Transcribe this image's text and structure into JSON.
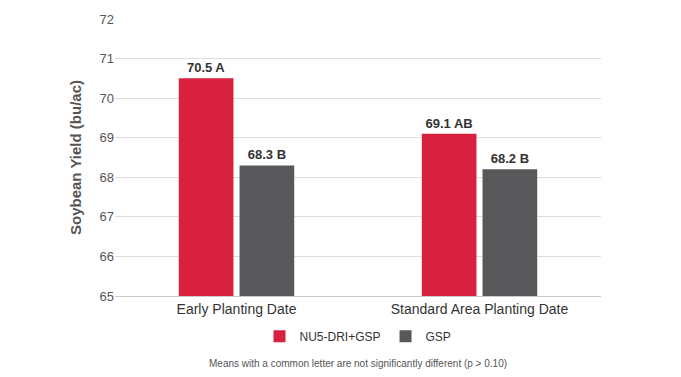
{
  "chart_data": {
    "type": "bar",
    "categories": [
      "Early Planting Date",
      "Standard Area Planting Date"
    ],
    "series": [
      {
        "name": "NU5-DRI+GSP",
        "color": "#d8213e",
        "values": [
          70.5,
          69.1
        ],
        "value_labels": [
          "70.5 A",
          "69.1 AB"
        ]
      },
      {
        "name": "GSP",
        "color": "#58585b",
        "values": [
          68.3,
          68.2
        ],
        "value_labels": [
          "68.3 B",
          "68.2 B"
        ]
      }
    ],
    "y_label": "Soybean Yield (bu/ac)",
    "ylim": [
      65,
      72
    ],
    "yticks": [
      65,
      66,
      67,
      68,
      69,
      70,
      71,
      72
    ],
    "grid": true,
    "legend": "bottom",
    "data_labels": true,
    "annotations": [
      "Means with a common letter are not significantly different (p > 0.10)"
    ]
  }
}
